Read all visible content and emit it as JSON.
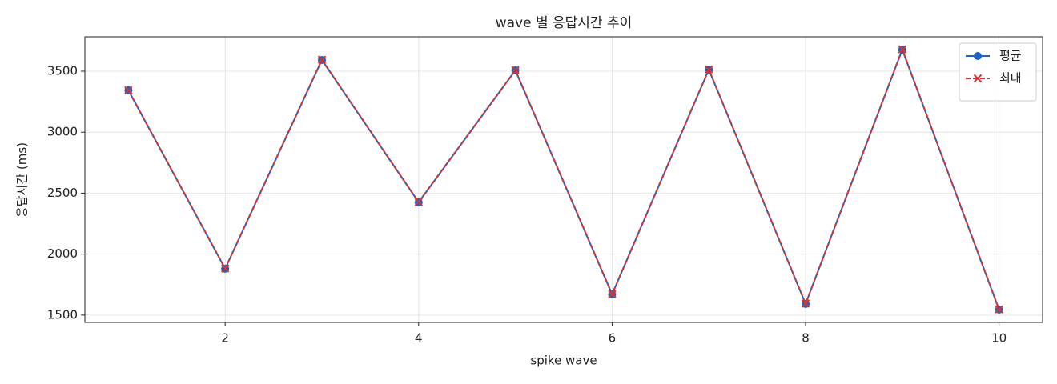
{
  "chart_data": {
    "type": "line",
    "title": "wave 별 응답시간 추이",
    "x_label": "spike wave",
    "y_label": "응답시간 (ms)",
    "x": [
      1,
      2,
      3,
      4,
      5,
      6,
      7,
      8,
      9,
      10
    ],
    "series": [
      {
        "name": "평균",
        "color": "#1f63c0",
        "marker": "o",
        "linestyle": "solid",
        "values": [
          3343,
          1880,
          3592,
          2425,
          3507,
          1670,
          3513,
          1592,
          3677,
          1545
        ]
      },
      {
        "name": "최대",
        "color": "#d03535",
        "marker": "x",
        "linestyle": "dashed",
        "values": [
          3343,
          1882,
          3594,
          2427,
          3509,
          1672,
          3515,
          1594,
          3679,
          1547
        ]
      }
    ],
    "xlim": [
      0.55,
      10.45
    ],
    "xticks": [
      2,
      4,
      6,
      8,
      10
    ],
    "ylim": [
      1440,
      3782
    ],
    "yticks": [
      1500,
      2000,
      2500,
      3000,
      3500
    ],
    "grid": true,
    "legend": "upper right"
  }
}
